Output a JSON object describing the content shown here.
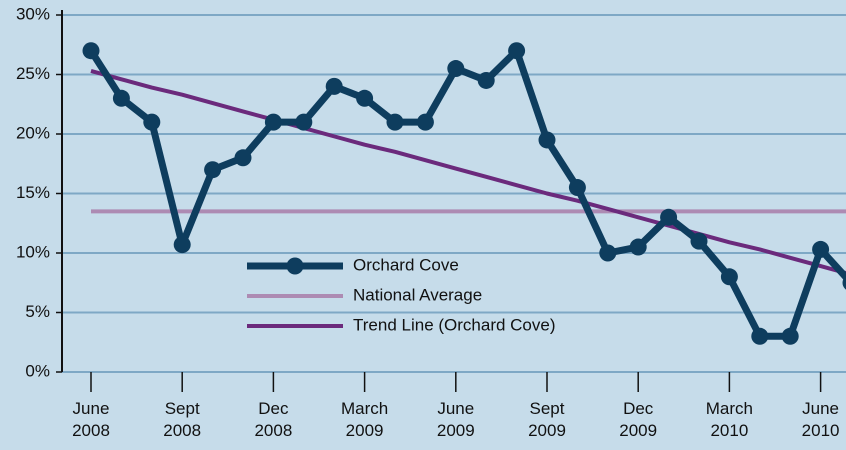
{
  "chart_data": {
    "type": "line",
    "categories": [
      "June\n2008",
      null,
      null,
      "Sept\n2008",
      null,
      null,
      "Dec\n2008",
      null,
      null,
      "March\n2009",
      null,
      null,
      "June\n2009",
      null,
      null,
      "Sept\n2009",
      null,
      null,
      "Dec\n2009",
      null,
      null,
      "March\n2010",
      null,
      null,
      "June\n2010",
      null
    ],
    "series": [
      {
        "name": "Orchard Cove",
        "color": "#0e3d5e",
        "marker": true,
        "values": [
          27,
          23,
          21,
          10.7,
          17,
          18,
          21,
          21,
          24,
          23,
          21,
          21,
          25.5,
          24.5,
          27,
          19.5,
          15.5,
          10,
          10.5,
          13,
          11,
          8,
          3,
          3,
          10.3,
          7.5
        ]
      },
      {
        "name": "National Average",
        "color": "#ad8bb3",
        "marker": false,
        "values": [
          13.5,
          13.5,
          13.5,
          13.5,
          13.5,
          13.5,
          13.5,
          13.5,
          13.5,
          13.5,
          13.5,
          13.5,
          13.5,
          13.5,
          13.5,
          13.5,
          13.5,
          13.5,
          13.5,
          13.5,
          13.5,
          13.5,
          13.5,
          13.5,
          13.5,
          13.5
        ]
      },
      {
        "name": "Trend Line (Orchard Cove)",
        "color": "#6b2a7c",
        "marker": false,
        "values": [
          25.3,
          24.6,
          23.9,
          23.3,
          22.6,
          21.9,
          21.2,
          20.5,
          19.8,
          19.1,
          18.5,
          17.8,
          17.1,
          16.4,
          15.7,
          15.0,
          14.4,
          13.7,
          13.0,
          12.3,
          11.6,
          10.9,
          10.3,
          9.6,
          8.9,
          8.2
        ]
      }
    ],
    "ylim": [
      0,
      30
    ],
    "yticks": [
      {
        "value": 0,
        "label": "0%"
      },
      {
        "value": 5,
        "label": "5%"
      },
      {
        "value": 10,
        "label": "10%"
      },
      {
        "value": 15,
        "label": "15%"
      },
      {
        "value": 20,
        "label": "20%"
      },
      {
        "value": 25,
        "label": "25%"
      },
      {
        "value": 30,
        "label": "30%"
      }
    ],
    "grid": true
  }
}
